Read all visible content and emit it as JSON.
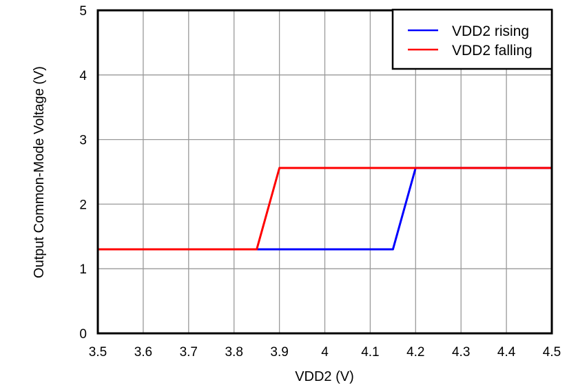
{
  "chart_data": {
    "type": "line",
    "title": "",
    "xlabel": "VDD2 (V)",
    "ylabel": "Output Common-Mode Voltage (V)",
    "xlim": [
      3.5,
      4.5
    ],
    "ylim": [
      0,
      5
    ],
    "xticks": [
      "3.5",
      "3.6",
      "3.7",
      "3.8",
      "3.9",
      "4",
      "4.1",
      "4.2",
      "4.3",
      "4.4",
      "4.5"
    ],
    "yticks": [
      "0",
      "1",
      "2",
      "3",
      "4",
      "5"
    ],
    "grid": true,
    "legend_position": "upper right",
    "series": [
      {
        "name": "VDD2 rising",
        "color": "#0000FF",
        "x": [
          3.5,
          4.15,
          4.2,
          4.5
        ],
        "y": [
          1.3,
          1.3,
          2.56,
          2.56
        ]
      },
      {
        "name": "VDD2 falling",
        "color": "#FF0000",
        "x": [
          3.5,
          3.85,
          3.9,
          4.5
        ],
        "y": [
          1.3,
          1.3,
          2.56,
          2.56
        ]
      }
    ]
  },
  "legend": {
    "items": [
      {
        "label": "VDD2 rising",
        "color": "#0000FF"
      },
      {
        "label": "VDD2 falling",
        "color": "#FF0000"
      }
    ]
  }
}
